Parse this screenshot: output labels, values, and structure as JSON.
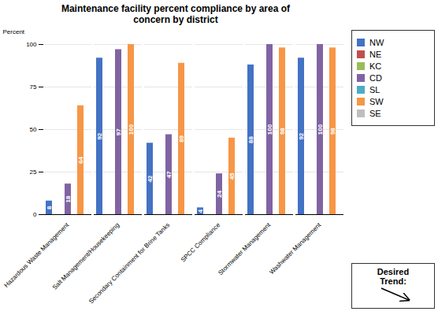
{
  "chart_data": {
    "type": "bar",
    "title": "Maintenance facility percent compliance by area of\nconcern by district",
    "y_label": "Percent",
    "categories": [
      "Hazardous Waste Management",
      "Salt Management/Housekeeping",
      "Secondary Containment for Brine Tanks",
      "SPCC Compliance",
      "Stormwater Management",
      "Washwater Management"
    ],
    "series": [
      {
        "name": "NW",
        "color": "#4472C4",
        "values": [
          8,
          92,
          42,
          4,
          88,
          92
        ],
        "data_labels": true
      },
      {
        "name": "NE",
        "color": "#C0504D",
        "values": [
          0,
          0,
          0,
          0,
          0,
          0
        ],
        "data_labels": false
      },
      {
        "name": "KC",
        "color": "#9BBB59",
        "values": [
          0,
          0,
          0,
          0,
          0,
          0
        ],
        "data_labels": false
      },
      {
        "name": "CD",
        "color": "#8064A2",
        "values": [
          18,
          97,
          47,
          24,
          100,
          100
        ],
        "data_labels": true
      },
      {
        "name": "SL",
        "color": "#4BACC6",
        "values": [
          0,
          0,
          0,
          0,
          0,
          0
        ],
        "data_labels": false
      },
      {
        "name": "SW",
        "color": "#F79646",
        "values": [
          64,
          100,
          89,
          45,
          98,
          98
        ],
        "data_labels": true
      },
      {
        "name": "SE",
        "color": "#BEBEBE",
        "values": [
          0,
          0,
          0,
          0,
          0,
          0
        ],
        "data_labels": false
      }
    ],
    "ylim": [
      0,
      100
    ],
    "yticks": [
      0,
      25,
      50,
      75,
      100
    ],
    "grid": true,
    "legend": "right",
    "annotations": [
      "Desired",
      "Trend:"
    ]
  }
}
